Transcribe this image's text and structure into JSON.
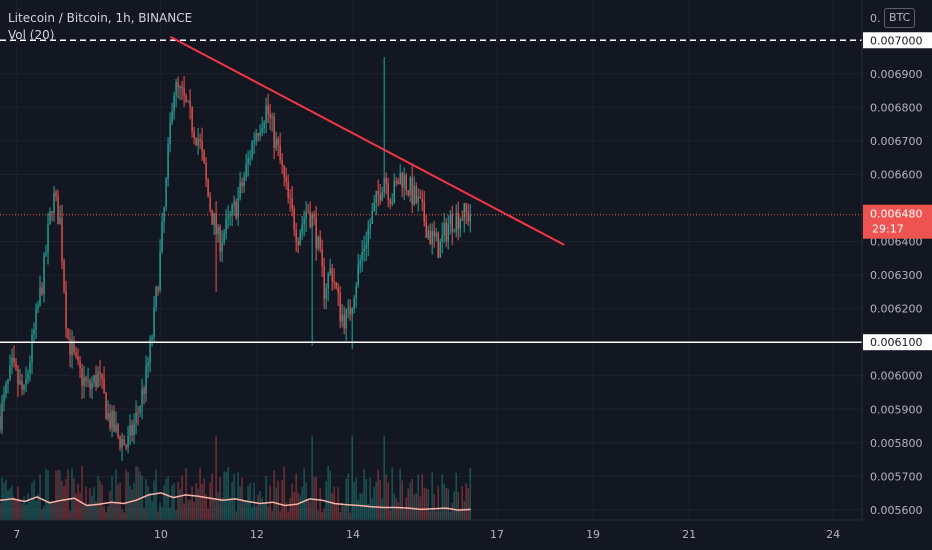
{
  "header": {
    "symbol_title": "Litecoin / Bitcoin, 1h, BINANCE",
    "indicator": "Vol (20)",
    "currency": "BTC"
  },
  "colors": {
    "background": "#131722",
    "up": "#26a69a",
    "down": "#ef5350",
    "trendline": "#f23645",
    "volume_ma": "#f7b3a8",
    "price_line": "#ef5350",
    "level_line": "#ffffff"
  },
  "chart_data": {
    "type": "candlestick",
    "symbol": "Litecoin / Bitcoin",
    "interval": "1h",
    "exchange": "BINANCE",
    "y_unit": "BTC",
    "ylim": [
      0.00557,
      0.00712
    ],
    "x_range": [
      6.65,
      24.6
    ],
    "x_ticks": [
      "7",
      "10",
      "12",
      "14",
      "17",
      "19",
      "21",
      "24"
    ],
    "y_ticks": [
      "0.005600",
      "0.005700",
      "0.005800",
      "0.005900",
      "0.006000",
      "0.006200",
      "0.006300",
      "0.006400",
      "0.006600",
      "0.006700",
      "0.006800",
      "0.006900"
    ],
    "price_scale_top_label": "0.",
    "last_price": {
      "value": "0.006480",
      "countdown": "29:17",
      "price": 0.00648
    },
    "horizontal_levels": [
      {
        "label": "0.007000",
        "price": 0.007,
        "style": "dashed"
      },
      {
        "label": "0.006100",
        "price": 0.0061,
        "style": "solid"
      }
    ],
    "trendline": {
      "from": {
        "day": 10.2,
        "price": 0.00701
      },
      "to": {
        "day": 18.4,
        "price": 0.00639
      }
    },
    "price_path": [
      [
        6.65,
        0.00588
      ],
      [
        6.9,
        0.00602
      ],
      [
        7.15,
        0.00594
      ],
      [
        7.35,
        0.00612
      ],
      [
        7.55,
        0.0063
      ],
      [
        7.75,
        0.00654
      ],
      [
        7.9,
        0.00646
      ],
      [
        8.05,
        0.00612
      ],
      [
        8.25,
        0.00602
      ],
      [
        8.5,
        0.00596
      ],
      [
        8.7,
        0.006
      ],
      [
        8.9,
        0.00588
      ],
      [
        9.1,
        0.00582
      ],
      [
        9.3,
        0.00579
      ],
      [
        9.5,
        0.00588
      ],
      [
        9.7,
        0.006
      ],
      [
        9.85,
        0.00616
      ],
      [
        10.0,
        0.00638
      ],
      [
        10.1,
        0.00655
      ],
      [
        10.25,
        0.00686
      ],
      [
        10.45,
        0.00683
      ],
      [
        10.6,
        0.00677
      ],
      [
        10.8,
        0.0067
      ],
      [
        11.0,
        0.00652
      ],
      [
        11.2,
        0.0064
      ],
      [
        11.4,
        0.00645
      ],
      [
        11.6,
        0.00652
      ],
      [
        11.75,
        0.0066
      ],
      [
        11.95,
        0.00672
      ],
      [
        12.2,
        0.0068
      ],
      [
        12.45,
        0.00666
      ],
      [
        12.65,
        0.00652
      ],
      [
        12.85,
        0.00642
      ],
      [
        13.05,
        0.0065
      ],
      [
        13.2,
        0.00645
      ],
      [
        13.4,
        0.00626
      ],
      [
        13.55,
        0.00632
      ],
      [
        13.75,
        0.00618
      ],
      [
        13.9,
        0.00617
      ],
      [
        14.05,
        0.00628
      ],
      [
        14.25,
        0.0064
      ],
      [
        14.45,
        0.0065
      ],
      [
        14.65,
        0.0066
      ],
      [
        14.8,
        0.00653
      ],
      [
        15.0,
        0.0066
      ],
      [
        15.2,
        0.00655
      ],
      [
        15.4,
        0.0065
      ],
      [
        15.6,
        0.00642
      ],
      [
        15.8,
        0.00638
      ],
      [
        16.0,
        0.00646
      ],
      [
        16.25,
        0.00648
      ],
      [
        16.45,
        0.00648
      ]
    ],
    "spikes": [
      {
        "day": 13.15,
        "low": 0.00609
      },
      {
        "day": 13.97,
        "low": 0.00608
      },
      {
        "day": 14.65,
        "high": 0.00695
      },
      {
        "day": 11.15,
        "low": 0.00625
      }
    ],
    "volume_ma_path": [
      0.3,
      0.32,
      0.28,
      0.35,
      0.26,
      0.3,
      0.33,
      0.22,
      0.24,
      0.27,
      0.25,
      0.3,
      0.38,
      0.41,
      0.34,
      0.38,
      0.36,
      0.33,
      0.3,
      0.32,
      0.28,
      0.25,
      0.27,
      0.22,
      0.24,
      0.32,
      0.3,
      0.25,
      0.23,
      0.22,
      0.2,
      0.19,
      0.19,
      0.18,
      0.16,
      0.17,
      0.18,
      0.15,
      0.16
    ]
  }
}
